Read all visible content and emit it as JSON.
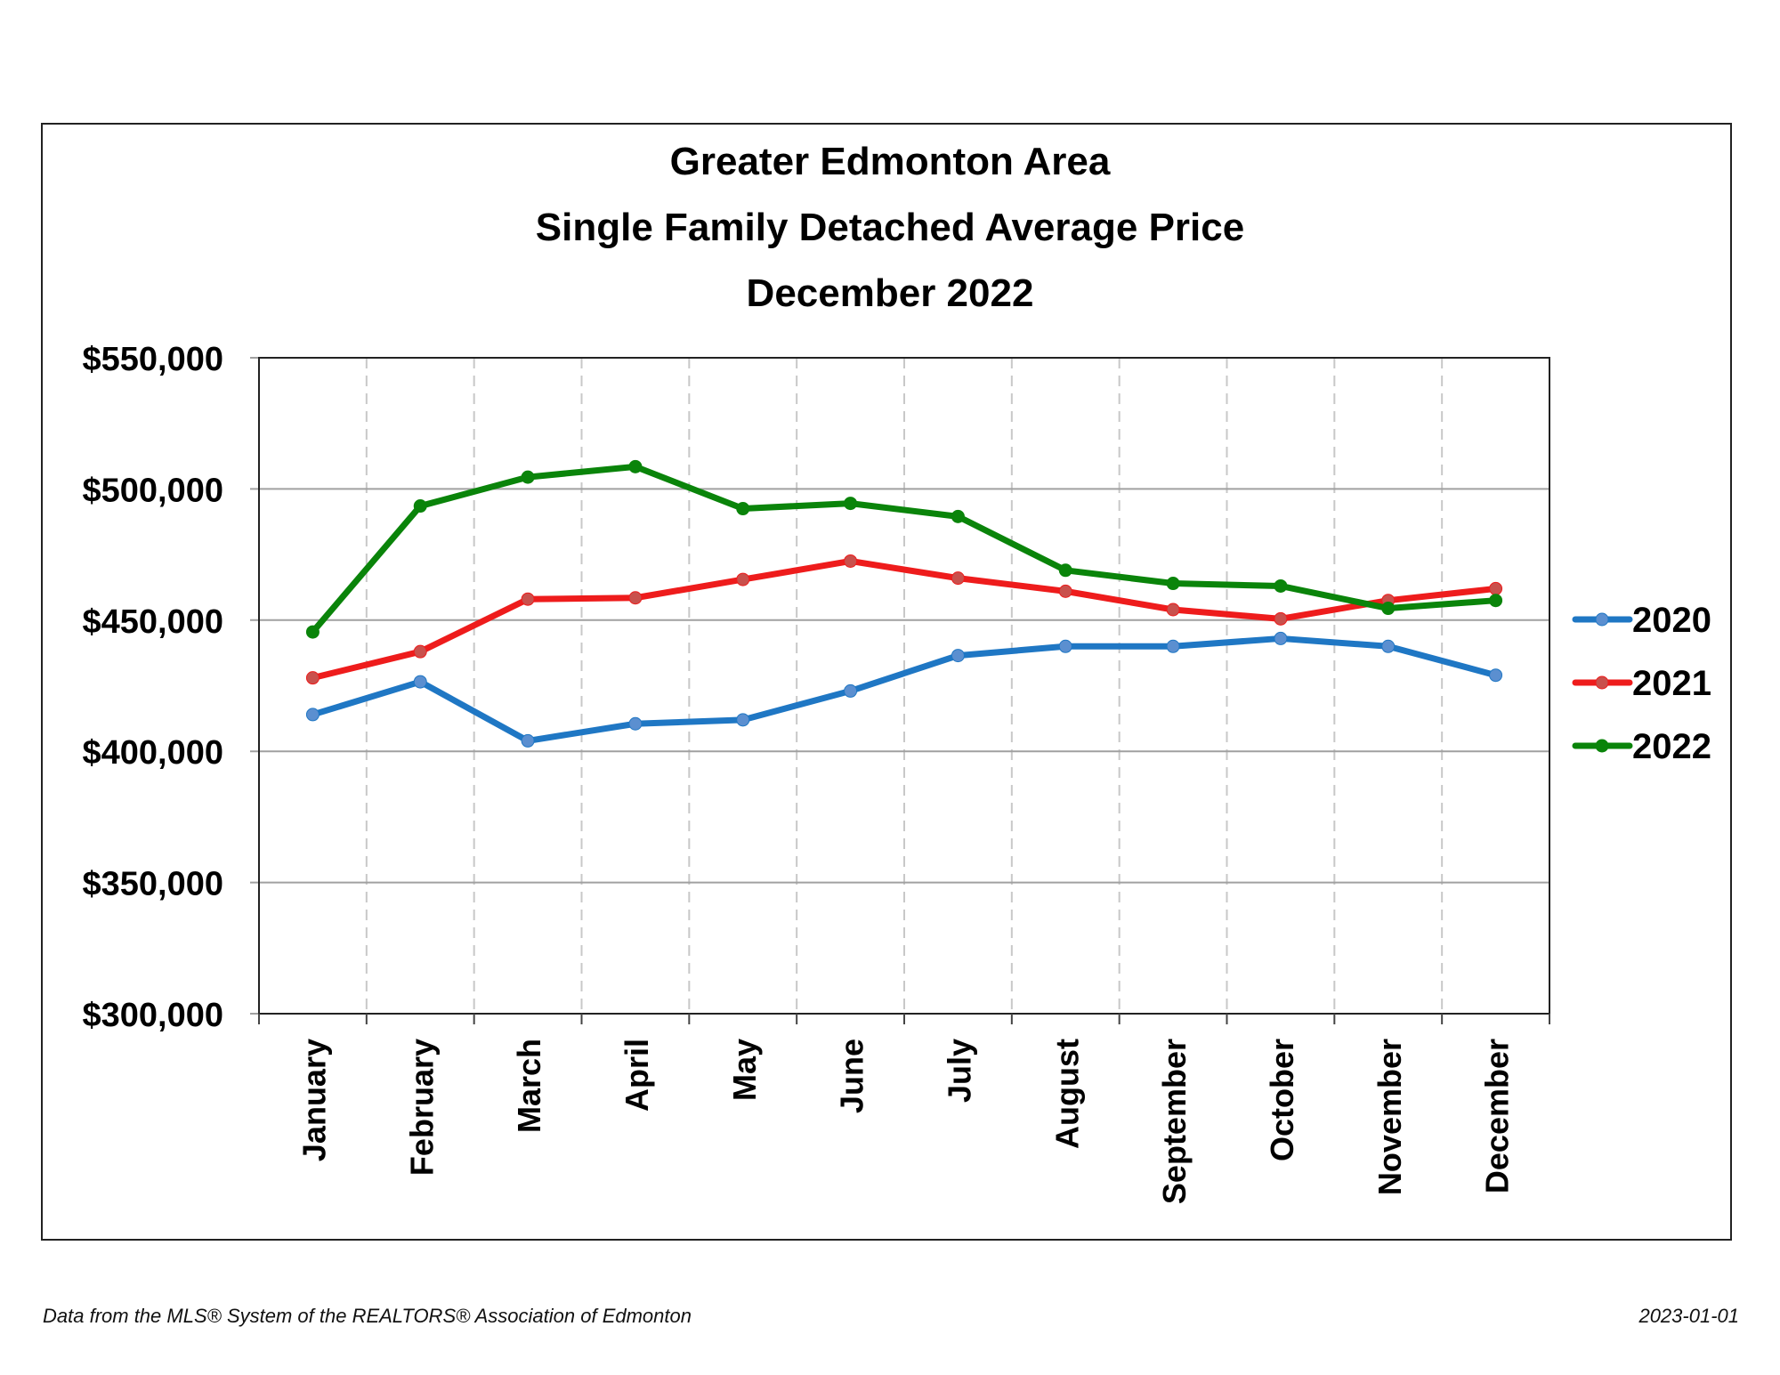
{
  "chart_data": {
    "type": "line",
    "title": [
      "Greater Edmonton Area",
      "Single Family Detached Average Price",
      "December 2022"
    ],
    "xlabel": "",
    "ylabel": "",
    "categories": [
      "January",
      "February",
      "March",
      "April",
      "May",
      "June",
      "July",
      "August",
      "September",
      "October",
      "November",
      "December"
    ],
    "ylim": [
      300000,
      550000
    ],
    "yticks": [
      300000,
      350000,
      400000,
      450000,
      500000,
      550000
    ],
    "ytick_labels": [
      "$300,000",
      "$350,000",
      "$400,000",
      "$450,000",
      "$500,000",
      "$550,000"
    ],
    "grid": {
      "horizontal": "solid",
      "vertical": "dashed"
    },
    "legend_position": "right",
    "series": [
      {
        "name": "2020",
        "color": "#1f77c4",
        "marker_color": "#5b8fd0",
        "values": [
          414000,
          426500,
          404000,
          410500,
          412000,
          423000,
          436500,
          440000,
          440000,
          443000,
          440000,
          429000
        ]
      },
      {
        "name": "2021",
        "color": "#ee1c1c",
        "marker_color": "#c9504c",
        "values": [
          428000,
          438000,
          458000,
          458500,
          465500,
          472500,
          466000,
          461000,
          454000,
          450500,
          457500,
          462000
        ]
      },
      {
        "name": "2022",
        "color": "#0a840a",
        "marker_color": "#0a840a",
        "values": [
          445500,
          493500,
          504500,
          508500,
          492500,
          494500,
          489500,
          469000,
          464000,
          463000,
          454500,
          457500
        ]
      }
    ]
  },
  "footer": {
    "source": "Data from the MLS® System of the REALTORS® Association of Edmonton",
    "date": "2023-01-01"
  }
}
